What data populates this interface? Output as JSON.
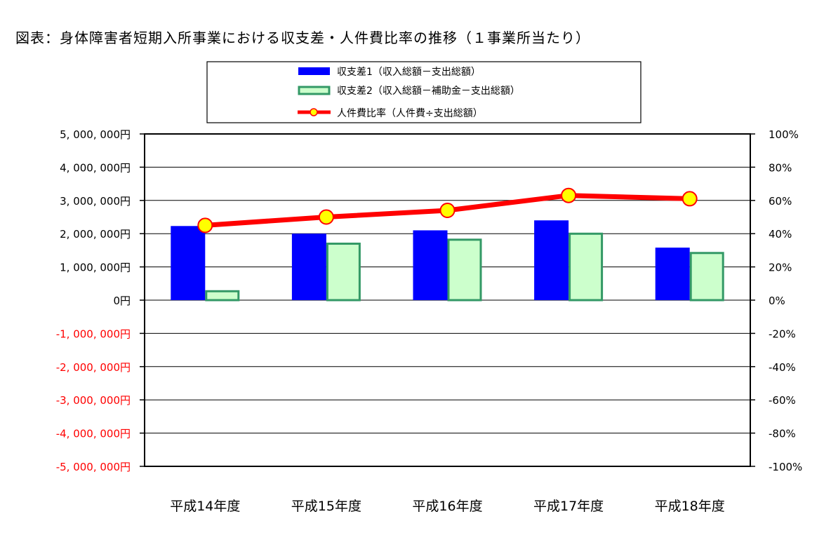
{
  "title": "図表：身体障害者短期入所事業における収支差・人件費比率の推移（１事業所当たり）",
  "chart_data": {
    "type": "bar",
    "categories": [
      "平成14年度",
      "平成15年度",
      "平成16年度",
      "平成17年度",
      "平成18年度"
    ],
    "series": [
      {
        "name": "収支差1（収入総額－支出総額）",
        "type": "bar",
        "axis": "left",
        "color": "#0000ff",
        "values": [
          2230000,
          2000000,
          2100000,
          2400000,
          1580000
        ]
      },
      {
        "name": "収支差2（収入総額－補助金－支出総額）",
        "type": "bar",
        "axis": "left",
        "color": "#ccffcc",
        "stroke": "#339966",
        "values": [
          300000,
          1730000,
          1850000,
          2030000,
          1450000
        ]
      },
      {
        "name": "人件費比率（人件費÷支出総額）",
        "type": "line",
        "axis": "right",
        "color": "#ff0000",
        "marker_color": "#ffff00",
        "values": [
          45,
          50,
          54,
          63,
          61
        ]
      }
    ],
    "y_left": {
      "ylim": [
        -5000000,
        5000000
      ],
      "ticks": [
        "5, 000, 000円",
        "4, 000, 000円",
        "3, 000, 000円",
        "2, 000, 000円",
        "1, 000, 000円",
        "0円",
        "-1, 000, 000円",
        "-2, 000, 000円",
        "-3, 000, 000円",
        "-4, 000, 000円",
        "-5, 000, 000円"
      ],
      "negative_color": "#ff0000"
    },
    "y_right": {
      "ylim": [
        -100,
        100
      ],
      "ticks": [
        "100%",
        "80%",
        "60%",
        "40%",
        "20%",
        "0%",
        "-20%",
        "-40%",
        "-60%",
        "-80%",
        "-100%"
      ]
    },
    "grid": true,
    "legend_position": "top"
  }
}
